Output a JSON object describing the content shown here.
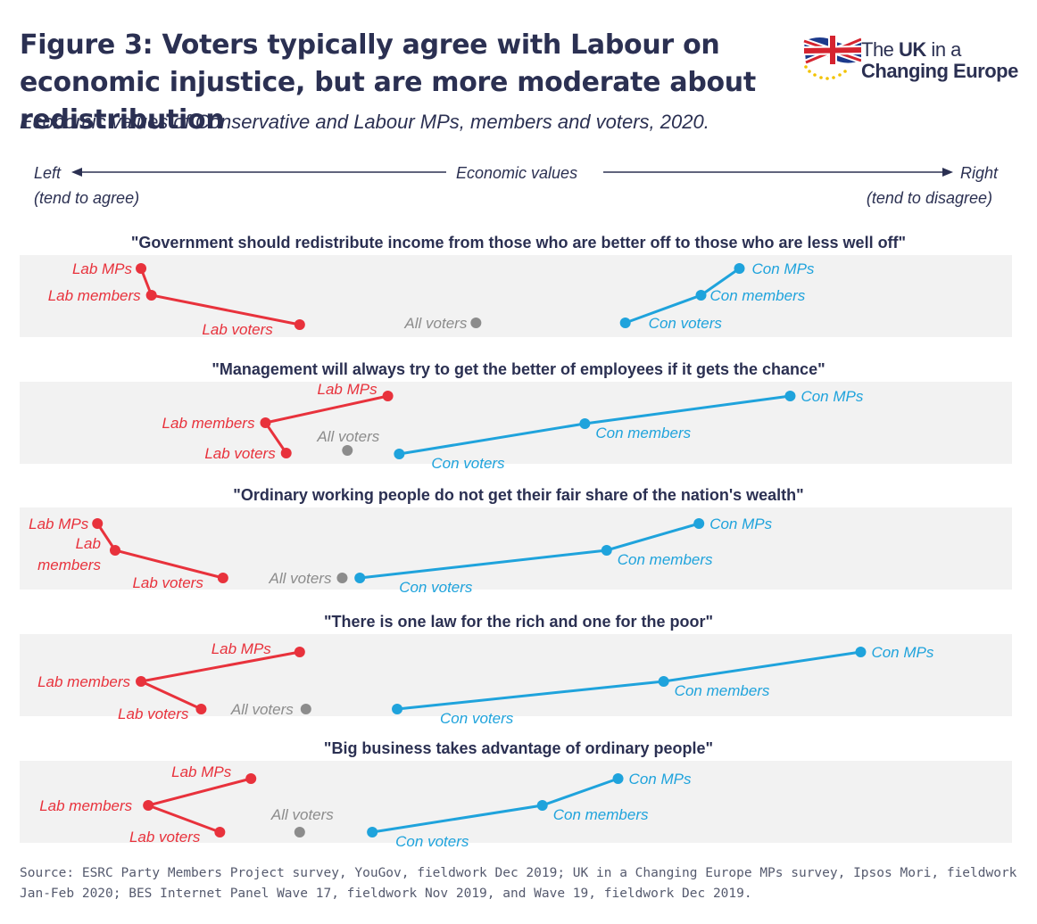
{
  "header": {
    "title": "Figure 3: Voters typically agree with Labour on economic injustice, but are more moderate about redistribution",
    "subtitle": "Economic values of Conservative and Labour MPs, members and voters, 2020."
  },
  "logo": {
    "line1_prefix": "The ",
    "line1_bold": "UK",
    "line1_suffix": " in a",
    "line2": "Changing Europe"
  },
  "axis": {
    "left_label": "Left",
    "left_sub": "(tend to agree)",
    "center_label": "Economic values",
    "right_label": "Right",
    "right_sub": "(tend to disagree)"
  },
  "source": "Source: ESRC Party Members Project survey, YouGov, fieldwork Dec 2019; UK in a Changing Europe MPs survey, Ipsos Mori, fieldwork Jan-Feb 2020; BES Internet Panel Wave 17, fieldwork Nov 2019, and Wave 19, fieldwork Dec 2019.",
  "colors": {
    "labour": "#e8323c",
    "conservative": "#1fa3dc",
    "all_voters": "#8c8c8c",
    "band": "#f2f2f2",
    "text": "#2b3052"
  },
  "chart_data": {
    "type": "scatter",
    "x_axis": "Economic values (left = tend to agree, right = tend to disagree)",
    "groups": [
      "Lab MPs",
      "Lab members",
      "Lab voters",
      "All voters",
      "Con voters",
      "Con members",
      "Con MPs"
    ],
    "panels": [
      {
        "statement": "\"Government should redistribute income from those who are better off to those who are less well off\"",
        "points": {
          "Lab MPs": 0.136,
          "Lab members": 0.146,
          "Lab voters": 0.289,
          "All voters": 0.459,
          "Con voters": 0.603,
          "Con members": 0.676,
          "Con MPs": 0.713
        },
        "labels": {
          "lab_mps": "Lab MPs",
          "lab_members": "Lab members",
          "lab_voters": "Lab voters",
          "all_voters": "All voters",
          "con_voters": "Con voters",
          "con_members": "Con members",
          "con_mps": "Con MPs"
        }
      },
      {
        "statement": "\"Management will always try to get the better of employees if it gets the chance\"",
        "points": {
          "Lab MPs": 0.374,
          "Lab members": 0.256,
          "Lab voters": 0.276,
          "All voters": 0.335,
          "Con voters": 0.385,
          "Con members": 0.564,
          "Con MPs": 0.762
        },
        "labels": {
          "lab_mps": "Lab MPs",
          "lab_members": "Lab members",
          "lab_voters": "Lab voters",
          "all_voters": "All voters",
          "con_voters": "Con voters",
          "con_members": "Con members",
          "con_mps": "Con MPs"
        }
      },
      {
        "statement": "\"Ordinary working people do not get their fair share of the nation's wealth\"",
        "points": {
          "Lab MPs": 0.094,
          "Lab members": 0.111,
          "Lab voters": 0.215,
          "All voters": 0.33,
          "Con voters": 0.347,
          "Con members": 0.585,
          "Con MPs": 0.674
        },
        "labels": {
          "lab_mps": "Lab MPs",
          "lab_members_1": "Lab",
          "lab_members_2": "members",
          "lab_voters": "Lab voters",
          "all_voters": "All voters",
          "con_voters": "Con voters",
          "con_members": "Con members",
          "con_mps": "Con MPs"
        }
      },
      {
        "statement": "\"There is one law for the rich and one for the poor\"",
        "points": {
          "Lab MPs": 0.289,
          "Lab members": 0.136,
          "Lab voters": 0.194,
          "All voters": 0.295,
          "Con voters": 0.383,
          "Con members": 0.64,
          "Con MPs": 0.83
        },
        "labels": {
          "lab_mps": "Lab MPs",
          "lab_members": "Lab members",
          "lab_voters": "Lab voters",
          "all_voters": "All voters",
          "con_voters": "Con voters",
          "con_members": "Con members",
          "con_mps": "Con MPs"
        }
      },
      {
        "statement": "\"Big business takes advantage of ordinary people\"",
        "points": {
          "Lab MPs": 0.242,
          "Lab members": 0.143,
          "Lab voters": 0.212,
          "All voters": 0.289,
          "Con voters": 0.359,
          "Con members": 0.523,
          "Con MPs": 0.596
        },
        "labels": {
          "lab_mps": "Lab MPs",
          "lab_members": "Lab members",
          "lab_voters": "Lab voters",
          "all_voters": "All voters",
          "con_voters": "Con voters",
          "con_members": "Con members",
          "con_mps": "Con MPs"
        }
      }
    ]
  }
}
